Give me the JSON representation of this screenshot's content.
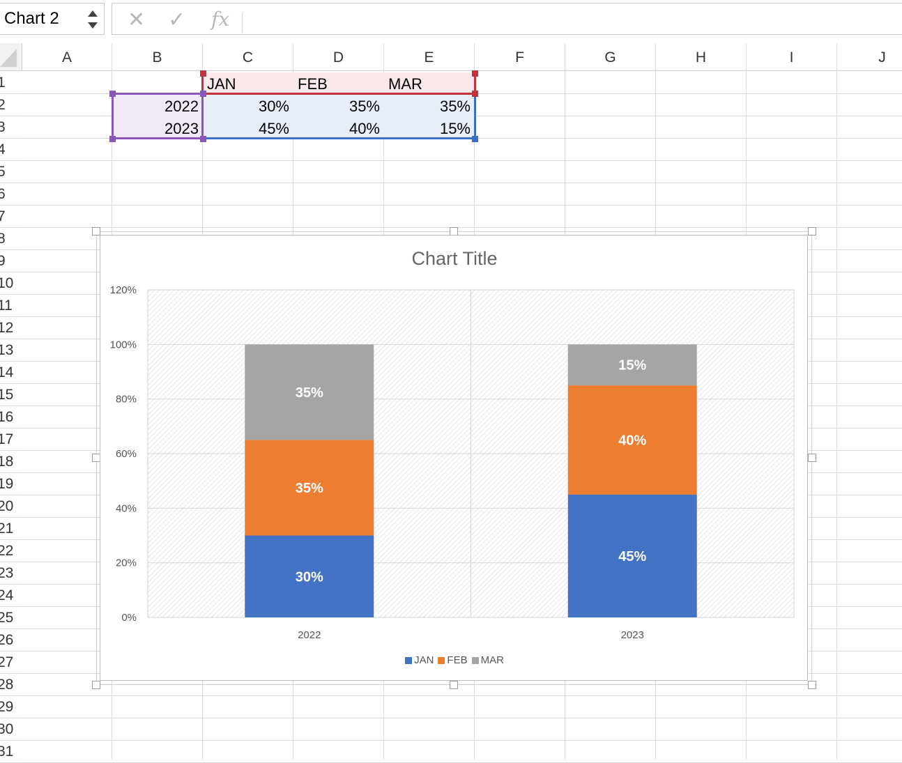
{
  "name_box": {
    "value": "Chart 2"
  },
  "formula_bar": {
    "cancel_icon": "✕",
    "confirm_icon": "✓",
    "fx_label": "fx",
    "value": ""
  },
  "columns": [
    "A",
    "B",
    "C",
    "D",
    "E",
    "F",
    "G",
    "H",
    "I",
    "J"
  ],
  "rows": [
    "1",
    "2",
    "3",
    "4",
    "5",
    "6",
    "7",
    "8",
    "9",
    "10",
    "11",
    "12",
    "13",
    "14",
    "15",
    "16",
    "17",
    "18",
    "19",
    "20",
    "21",
    "22",
    "23",
    "24",
    "25",
    "26",
    "27",
    "28",
    "29",
    "30",
    "31"
  ],
  "sheet": {
    "header": {
      "c1": "JAN",
      "d1": "FEB",
      "e1": "MAR"
    },
    "row2": {
      "b": "2022",
      "c": "30%",
      "d": "35%",
      "e": "35%"
    },
    "row3": {
      "b": "2023",
      "c": "45%",
      "d": "40%",
      "e": "15%"
    }
  },
  "colors": {
    "jan": "#4472C4",
    "feb": "#ED7D31",
    "mar": "#A5A5A5",
    "sel_purple": "#8A56BE",
    "sel_red": "#C3323C",
    "sel_blue": "#3A6FC8"
  },
  "chart_data": {
    "type": "bar",
    "stacked": true,
    "title": "Chart Title",
    "categories": [
      "2022",
      "2023"
    ],
    "series": [
      {
        "name": "JAN",
        "values": [
          30,
          45
        ],
        "labels": [
          "30%",
          "45%"
        ],
        "color": "#4472C4"
      },
      {
        "name": "FEB",
        "values": [
          35,
          40
        ],
        "labels": [
          "35%",
          "40%"
        ],
        "color": "#ED7D31"
      },
      {
        "name": "MAR",
        "values": [
          35,
          15
        ],
        "labels": [
          "35%",
          "15%"
        ],
        "color": "#A5A5A5"
      }
    ],
    "ylim": [
      0,
      120
    ],
    "yticks": [
      "0%",
      "20%",
      "40%",
      "60%",
      "80%",
      "100%",
      "120%"
    ],
    "legend": "bottom",
    "grid": true
  }
}
